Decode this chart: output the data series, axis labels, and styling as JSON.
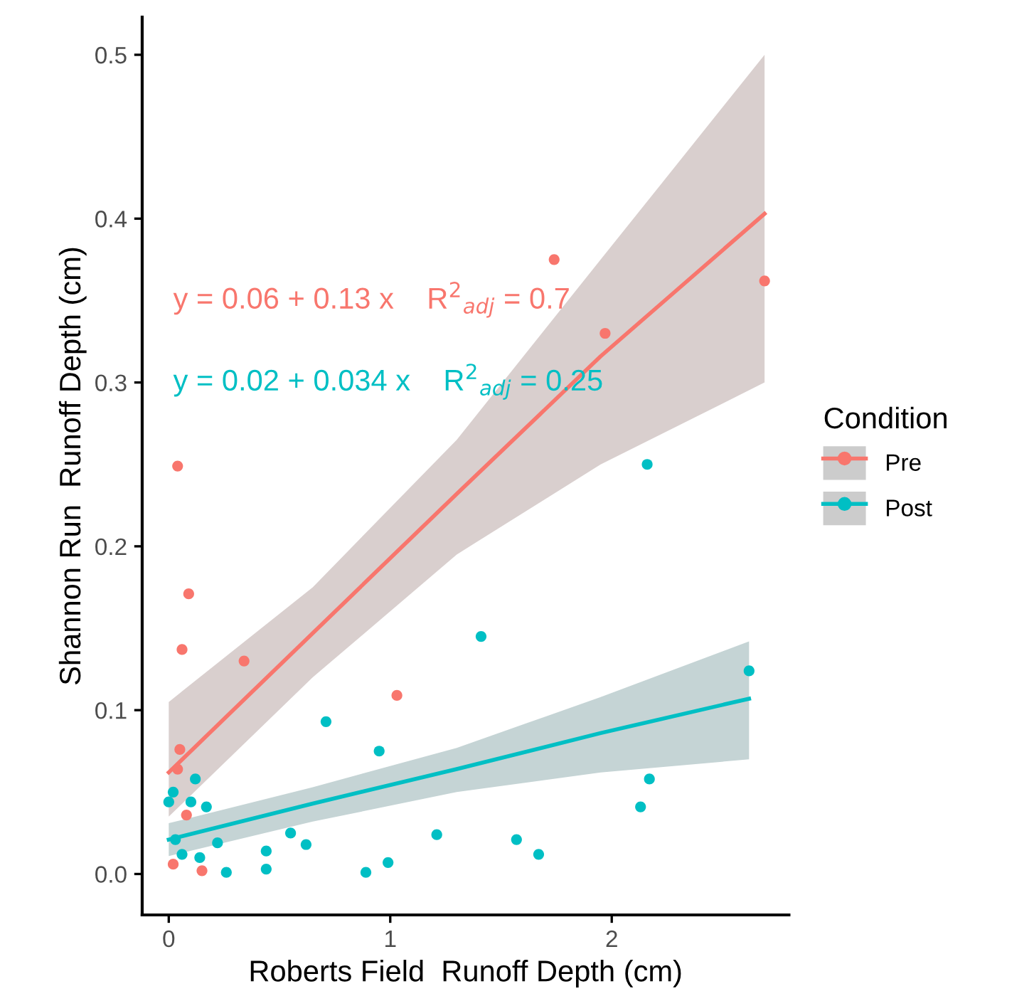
{
  "chart_data": {
    "type": "scatter",
    "xlabel": "Roberts Field  Runoff Depth (cm)",
    "ylabel": "Shannon Run  Runoff Depth (cm)",
    "legend_title": "Condition",
    "legend": "right",
    "grid": false,
    "marker": "circle",
    "xlim": [
      -0.12,
      2.8
    ],
    "xticks": [
      0,
      1,
      2
    ],
    "ylim": [
      -0.025,
      0.523
    ],
    "yticks": [
      {
        "value": 0,
        "label": "0.0"
      },
      0.1,
      0.2,
      0.3,
      0.4,
      0.5
    ],
    "annotations": [
      "y = 0.06 + 0.13 x    R$^{2}$$_{adj}$ = 0.7",
      "y = 0.02 + 0.034 x    R$^{2}$$_{adj}$ = 0.25"
    ],
    "series": [
      {
        "name": "Pre",
        "color": "#f8766d",
        "x": [
          0.04,
          0.09,
          0.06,
          0.34,
          1.03,
          0.05,
          0.04,
          0.08,
          0.02,
          0.15,
          1.74,
          1.97,
          2.69
        ],
        "values": [
          0.249,
          0.171,
          0.137,
          0.13,
          0.109,
          0.076,
          0.064,
          0.036,
          0.006,
          0.002,
          0.375,
          0.33,
          0.362
        ]
      },
      {
        "name": "Post",
        "color": "#00bfc4",
        "x": [
          0.71,
          0.95,
          0.12,
          0.02,
          0.0,
          0.17,
          0.1,
          0.03,
          0.22,
          0.55,
          0.62,
          0.44,
          0.44,
          0.26,
          0.89,
          0.99,
          0.06,
          0.14,
          1.41,
          2.62,
          2.17,
          2.13,
          1.21,
          1.57,
          1.67,
          2.16
        ],
        "values": [
          0.093,
          0.075,
          0.058,
          0.05,
          0.044,
          0.041,
          0.044,
          0.021,
          0.019,
          0.025,
          0.018,
          0.014,
          0.003,
          0.001,
          0.001,
          0.007,
          0.012,
          0.01,
          0.145,
          0.124,
          0.058,
          0.041,
          0.024,
          0.021,
          0.012,
          0.25
        ]
      },
      {
        "type": "line",
        "marker": "none",
        "color": "#f8766d",
        "x": [
          0,
          0.65,
          1.3,
          1.95,
          2.69
        ],
        "values": [
          0.062,
          0.147,
          0.232,
          0.316,
          0.403
        ],
        "lower": [
          0.035,
          0.12,
          0.195,
          0.25,
          0.3
        ],
        "upper": [
          0.105,
          0.175,
          0.265,
          0.375,
          0.5
        ]
      },
      {
        "type": "line",
        "marker": "none",
        "color": "#00bfc4",
        "x": [
          0,
          0.65,
          1.3,
          1.95,
          2.62
        ],
        "values": [
          0.021,
          0.043,
          0.064,
          0.086,
          0.107
        ],
        "lower": [
          0.011,
          0.032,
          0.05,
          0.062,
          0.07
        ],
        "upper": [
          0.031,
          0.053,
          0.077,
          0.108,
          0.142
        ]
      }
    ]
  }
}
